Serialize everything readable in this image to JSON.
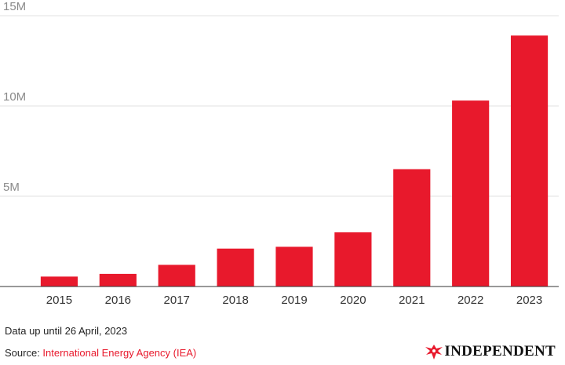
{
  "chart_data": {
    "type": "bar",
    "categories": [
      "2015",
      "2016",
      "2017",
      "2018",
      "2019",
      "2020",
      "2021",
      "2022",
      "2023"
    ],
    "values": [
      550000,
      700000,
      1200000,
      2100000,
      2200000,
      3000000,
      6500000,
      10300000,
      13900000
    ],
    "ylim": [
      0,
      15000000
    ],
    "yticks": [
      {
        "value": 5000000,
        "label": "5M"
      },
      {
        "value": 10000000,
        "label": "10M"
      },
      {
        "value": 15000000,
        "label": "15M"
      }
    ],
    "bar_color": "#e8192c",
    "grid": true
  },
  "footer": {
    "note": "Data up until 26 April, 2023",
    "source_prefix": "Source: ",
    "source_name": "International Energy Agency (IEA)",
    "logo_text": "INDEPENDENT"
  },
  "colors": {
    "accent": "#e8192c",
    "grid": "#e2e2e2",
    "axis": "#333333"
  }
}
